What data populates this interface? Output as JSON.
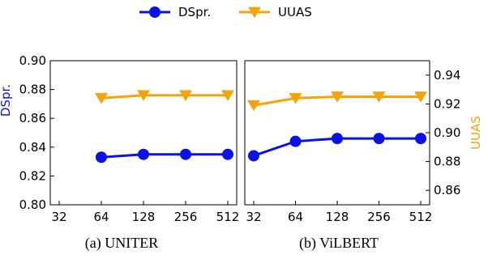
{
  "colors": {
    "dspr": "#0a12e6",
    "uuas": "#f5a30a"
  },
  "legend": [
    {
      "label": "DSpr.",
      "color": "#0a12e6",
      "marker": "circle"
    },
    {
      "label": "UUAS",
      "color": "#f5a30a",
      "marker": "triangle-down"
    }
  ],
  "chart_data": [
    {
      "type": "line",
      "caption": "(a) UNITER",
      "x": [
        32,
        64,
        128,
        256,
        512
      ],
      "x_scale": "log2",
      "xticks": [
        "32",
        "64",
        "128",
        "256",
        "512"
      ],
      "ylabel_left": "DSpr.",
      "ylim_left": [
        0.8,
        0.9
      ],
      "yticks_left": [
        "0.80",
        "0.82",
        "0.84",
        "0.86",
        "0.88",
        "0.90"
      ],
      "grid": false,
      "series": [
        {
          "name": "DSpr.",
          "axis": "left",
          "x": [
            64,
            128,
            256,
            512
          ],
          "values": [
            0.833,
            0.835,
            0.835,
            0.835
          ]
        },
        {
          "name": "UUAS",
          "axis": "left",
          "x": [
            64,
            128,
            256,
            512
          ],
          "values": [
            0.874,
            0.876,
            0.876,
            0.876
          ]
        }
      ]
    },
    {
      "type": "line",
      "caption": "(b) ViLBERT",
      "x": [
        32,
        64,
        128,
        256,
        512
      ],
      "x_scale": "log2",
      "xticks": [
        "32",
        "64",
        "128",
        "256",
        "512"
      ],
      "ylabel_right": "UUAS",
      "ylim_right": [
        0.85,
        0.95
      ],
      "yticks_right": [
        "0.86",
        "0.88",
        "0.90",
        "0.92",
        "0.94"
      ],
      "grid": false,
      "series": [
        {
          "name": "DSpr.",
          "axis": "left",
          "x": [
            32,
            64,
            128,
            256,
            512
          ],
          "values": [
            0.834,
            0.844,
            0.846,
            0.846,
            0.846
          ]
        },
        {
          "name": "UUAS",
          "axis": "right",
          "x": [
            32,
            64,
            128,
            256,
            512
          ],
          "values": [
            0.919,
            0.924,
            0.925,
            0.925,
            0.925
          ]
        }
      ]
    }
  ]
}
